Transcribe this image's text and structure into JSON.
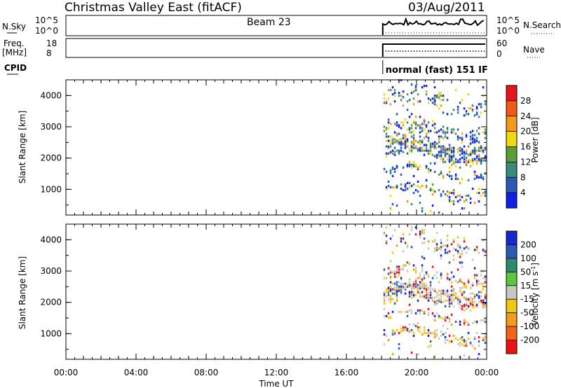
{
  "header": {
    "station": "Christmas Valley East (fitACF)",
    "beam": "Beam 23",
    "date": "03/Aug/2011"
  },
  "top_panels": {
    "nsky_label": "N.Sky",
    "nsky_ticks": [
      "10^5",
      "10^0"
    ],
    "nsearch_label": "N.Search",
    "nsearch_ticks": [
      "10^5",
      "10^0"
    ],
    "freq_label": "Freq.",
    "freq_unit": "[MHz]",
    "freq_ticks": [
      "18",
      "8"
    ],
    "nave_label": "Nave",
    "nave_ticks": [
      "60",
      "0"
    ],
    "cpid_label": "CPID",
    "cpid_text": "normal (fast) 151 IF"
  },
  "colors": {
    "data_start_fraction": 0.753,
    "ground_scatter": "#c8c8c0"
  },
  "chart_data": [
    {
      "type": "heatmap",
      "name": "power",
      "ylabel": "Slant Range [km]",
      "y_ticks": [
        "4000",
        "3000",
        "2000",
        "1000"
      ],
      "ylim": [
        180,
        4500
      ],
      "colorbar_label": "Power [dB]",
      "colorbar_ticks": [
        "28",
        "24",
        "20",
        "16",
        "12",
        "8",
        "4"
      ],
      "colorbar_colors": [
        "#e8141c",
        "#f05a14",
        "#f39a1c",
        "#f0d814",
        "#5a9e3c",
        "#3a8a78",
        "#2a5ab4",
        "#1020e6"
      ],
      "data_start_time": "18:00"
    },
    {
      "type": "heatmap",
      "name": "velocity",
      "ylabel": "Slant Range [km]",
      "y_ticks": [
        "4000",
        "3000",
        "2000",
        "1000"
      ],
      "ylim": [
        180,
        4500
      ],
      "colorbar_label": "Velocity [m s-1]",
      "colorbar_ticks": [
        "200",
        "100",
        "50",
        "15",
        "-15",
        "-50",
        "-100",
        "-200"
      ],
      "colorbar_colors": [
        "#1828c8",
        "#2a5ab4",
        "#2e8a6a",
        "#5ac83c",
        "#c8c8c0",
        "#f0c814",
        "#f59a1c",
        "#f0641c",
        "#e81414"
      ],
      "xlabel": "Time UT",
      "x_ticks": [
        "00:00",
        "04:00",
        "08:00",
        "12:00",
        "16:00",
        "20:00",
        "00:00"
      ],
      "data_start_time": "18:00"
    }
  ]
}
